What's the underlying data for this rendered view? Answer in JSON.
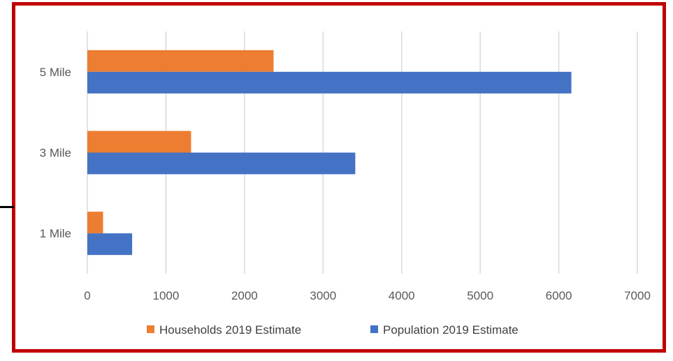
{
  "chart_data": {
    "type": "bar",
    "orientation": "horizontal",
    "categories": [
      "1 Mile",
      "3 Mile",
      "5 Mile"
    ],
    "series": [
      {
        "name": "Households 2019 Estimate",
        "color": "#ed7d31",
        "values": [
          200,
          1320,
          2370
        ]
      },
      {
        "name": "Population 2019 Estimate",
        "color": "#4472c4",
        "values": [
          570,
          3410,
          6160
        ]
      }
    ],
    "xlim": [
      0,
      7000
    ],
    "xticks": [
      0,
      1000,
      2000,
      3000,
      4000,
      5000,
      6000,
      7000
    ],
    "grid": true,
    "legend": "bottom",
    "frame_color": "#c00000"
  }
}
